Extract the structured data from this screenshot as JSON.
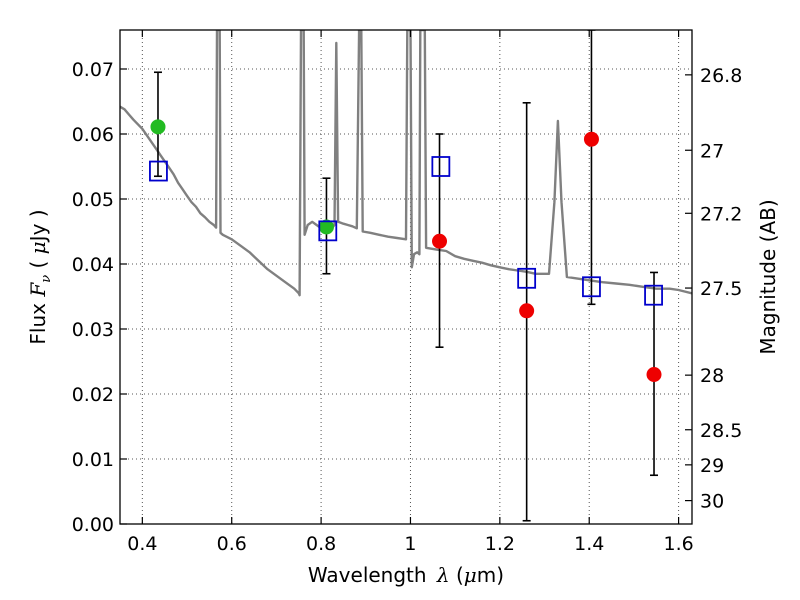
{
  "chart_data": {
    "type": "scatter",
    "xlabel": "Wavelength λ (μm)",
    "ylabel": "Flux F_ν ( μJy )",
    "y2label": "Magnitude (AB)",
    "xlim": [
      0.35,
      1.63
    ],
    "ylim": [
      0.0,
      0.076
    ],
    "grid": true,
    "x_ticks": [
      0.4,
      0.6,
      0.8,
      1.0,
      1.2,
      1.4,
      1.6
    ],
    "x_tick_labels": [
      "0.4",
      "0.6",
      "0.8",
      "1",
      "1.2",
      "1.4",
      "1.6"
    ],
    "y_ticks": [
      0.0,
      0.01,
      0.02,
      0.03,
      0.04,
      0.05,
      0.06,
      0.07
    ],
    "y_tick_labels": [
      "0.00",
      "0.01",
      "0.02",
      "0.03",
      "0.04",
      "0.05",
      "0.06",
      "0.07"
    ],
    "y2_ticks": [
      {
        "label": "26.8",
        "flux": 0.0691
      },
      {
        "label": "27",
        "flux": 0.0575
      },
      {
        "label": "27.2",
        "flux": 0.0478
      },
      {
        "label": "27.5",
        "flux": 0.0363
      },
      {
        "label": "28",
        "flux": 0.0229
      },
      {
        "label": "28.5",
        "flux": 0.0145
      },
      {
        "label": "29",
        "flux": 0.0091
      },
      {
        "label": "30",
        "flux": 0.0036
      }
    ],
    "colors": {
      "template": "#808080",
      "model": "#0000cc",
      "detection": "#22bb22",
      "upper_limit": "#ee0000",
      "errorbar": "#000000",
      "grid": "#555555"
    },
    "series": [
      {
        "kind": "line",
        "points": [
          [
            0.35,
            0.0642
          ],
          [
            0.36,
            0.0638
          ],
          [
            0.37,
            0.063
          ],
          [
            0.38,
            0.0622
          ],
          [
            0.39,
            0.0615
          ],
          [
            0.4,
            0.0608
          ],
          [
            0.41,
            0.0598
          ],
          [
            0.42,
            0.0588
          ],
          [
            0.43,
            0.0578
          ],
          [
            0.44,
            0.0568
          ],
          [
            0.45,
            0.0558
          ],
          [
            0.46,
            0.0548
          ],
          [
            0.47,
            0.0538
          ],
          [
            0.48,
            0.0525
          ],
          [
            0.49,
            0.0515
          ],
          [
            0.5,
            0.0505
          ],
          [
            0.51,
            0.0495
          ],
          [
            0.52,
            0.0488
          ],
          [
            0.53,
            0.0478
          ],
          [
            0.54,
            0.0472
          ],
          [
            0.55,
            0.0465
          ],
          [
            0.56,
            0.046
          ],
          [
            0.565,
            0.0456
          ],
          [
            0.567,
            0.076
          ],
          [
            0.573,
            0.076
          ],
          [
            0.575,
            0.0448
          ],
          [
            0.58,
            0.0445
          ],
          [
            0.6,
            0.0438
          ],
          [
            0.62,
            0.0428
          ],
          [
            0.64,
            0.0418
          ],
          [
            0.66,
            0.0405
          ],
          [
            0.68,
            0.0392
          ],
          [
            0.7,
            0.0382
          ],
          [
            0.72,
            0.0372
          ],
          [
            0.74,
            0.0362
          ],
          [
            0.75,
            0.0355
          ],
          [
            0.752,
            0.0352
          ],
          [
            0.755,
            0.076
          ],
          [
            0.761,
            0.076
          ],
          [
            0.763,
            0.0445
          ],
          [
            0.77,
            0.046
          ],
          [
            0.78,
            0.0465
          ],
          [
            0.79,
            0.046
          ],
          [
            0.8,
            0.0455
          ],
          [
            0.81,
            0.045
          ],
          [
            0.82,
            0.0452
          ],
          [
            0.83,
            0.046
          ],
          [
            0.834,
            0.074
          ],
          [
            0.838,
            0.0465
          ],
          [
            0.85,
            0.0462
          ],
          [
            0.86,
            0.046
          ],
          [
            0.87,
            0.0458
          ],
          [
            0.88,
            0.0455
          ],
          [
            0.885,
            0.076
          ],
          [
            0.89,
            0.076
          ],
          [
            0.893,
            0.045
          ],
          [
            0.91,
            0.0448
          ],
          [
            0.93,
            0.0445
          ],
          [
            0.95,
            0.0442
          ],
          [
            0.97,
            0.044
          ],
          [
            0.99,
            0.0438
          ],
          [
            0.993,
            0.076
          ],
          [
            1.0,
            0.076
          ],
          [
            1.003,
            0.0395
          ],
          [
            1.008,
            0.0415
          ],
          [
            1.015,
            0.0418
          ],
          [
            1.02,
            0.0415
          ],
          [
            1.022,
            0.076
          ],
          [
            1.032,
            0.076
          ],
          [
            1.035,
            0.0425
          ],
          [
            1.06,
            0.0422
          ],
          [
            1.08,
            0.042
          ],
          [
            1.1,
            0.0412
          ],
          [
            1.12,
            0.0408
          ],
          [
            1.14,
            0.0405
          ],
          [
            1.16,
            0.0402
          ],
          [
            1.18,
            0.0398
          ],
          [
            1.2,
            0.0395
          ],
          [
            1.22,
            0.0392
          ],
          [
            1.24,
            0.039
          ],
          [
            1.26,
            0.0388
          ],
          [
            1.28,
            0.0385
          ],
          [
            1.3,
            0.0385
          ],
          [
            1.31,
            0.0385
          ],
          [
            1.322,
            0.0495
          ],
          [
            1.33,
            0.062
          ],
          [
            1.338,
            0.0495
          ],
          [
            1.35,
            0.038
          ],
          [
            1.37,
            0.0378
          ],
          [
            1.4,
            0.0375
          ],
          [
            1.43,
            0.0372
          ],
          [
            1.46,
            0.037
          ],
          [
            1.49,
            0.0368
          ],
          [
            1.52,
            0.0365
          ],
          [
            1.55,
            0.0362
          ],
          [
            1.58,
            0.0362
          ],
          [
            1.6,
            0.036
          ],
          [
            1.63,
            0.0355
          ]
        ]
      },
      {
        "kind": "model_squares",
        "points": [
          [
            0.436,
            0.0543
          ],
          [
            0.815,
            0.0451
          ],
          [
            1.068,
            0.055
          ],
          [
            1.26,
            0.0378
          ],
          [
            1.405,
            0.0365
          ],
          [
            1.544,
            0.0352
          ]
        ]
      },
      {
        "kind": "errorbars",
        "points": [
          {
            "x": 0.435,
            "lo": 0.0535,
            "hi": 0.0695
          },
          {
            "x": 0.812,
            "lo": 0.0385,
            "hi": 0.0532
          },
          {
            "x": 1.065,
            "lo": 0.0272,
            "hi": 0.06
          },
          {
            "x": 1.26,
            "lo": 0.0005,
            "hi": 0.0648
          },
          {
            "x": 1.405,
            "lo": 0.0338,
            "hi": 0.076
          },
          {
            "x": 1.545,
            "lo": 0.0075,
            "hi": 0.0387
          }
        ]
      },
      {
        "kind": "detections",
        "points": [
          [
            0.435,
            0.0611
          ],
          [
            0.812,
            0.0457
          ]
        ]
      },
      {
        "kind": "upper_limits",
        "points": [
          [
            1.065,
            0.0435
          ],
          [
            1.26,
            0.0328
          ],
          [
            1.405,
            0.0592
          ],
          [
            1.545,
            0.023
          ]
        ]
      }
    ]
  }
}
